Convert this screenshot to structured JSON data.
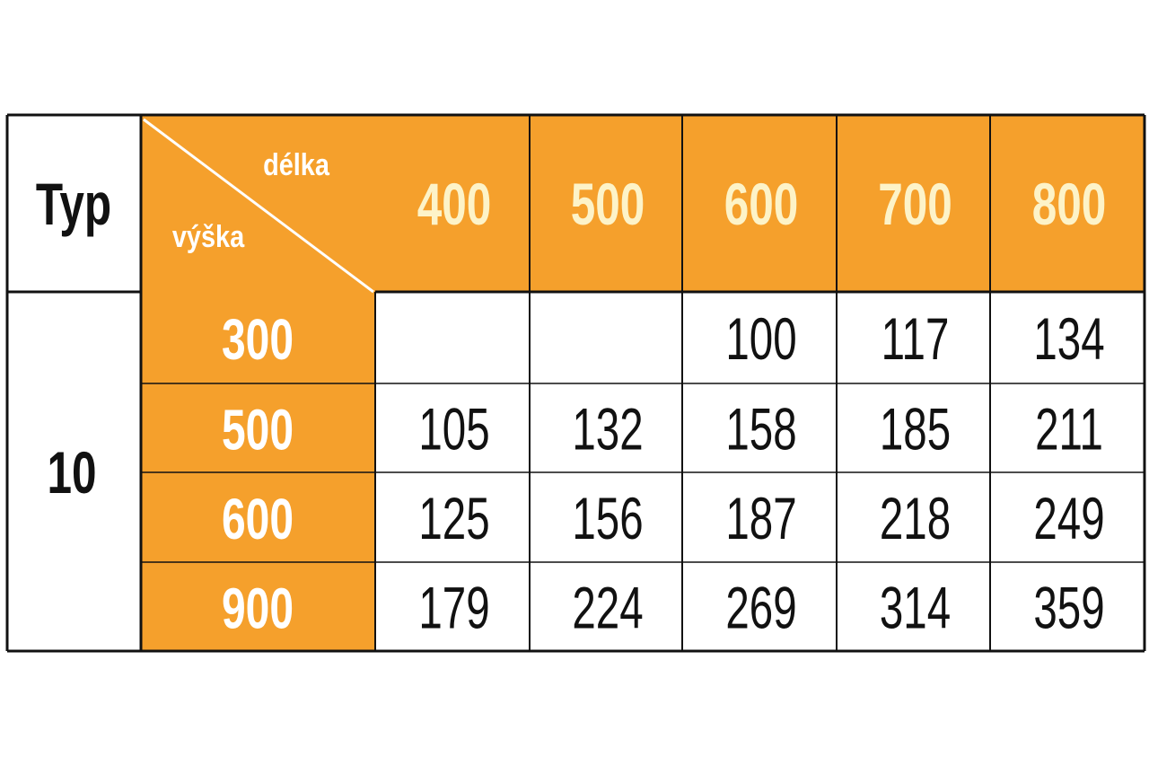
{
  "type": {
    "label": "Typ",
    "value": "10"
  },
  "corner": {
    "length": "délka",
    "height": "výška"
  },
  "columns": [
    400,
    500,
    600,
    700,
    800
  ],
  "rows": [
    {
      "label": 300,
      "cells": [
        null,
        null,
        100,
        117,
        134
      ]
    },
    {
      "label": 500,
      "cells": [
        105,
        132,
        158,
        185,
        211
      ]
    },
    {
      "label": 600,
      "cells": [
        125,
        156,
        187,
        218,
        249
      ]
    },
    {
      "label": 900,
      "cells": [
        179,
        224,
        269,
        314,
        359
      ]
    }
  ]
}
